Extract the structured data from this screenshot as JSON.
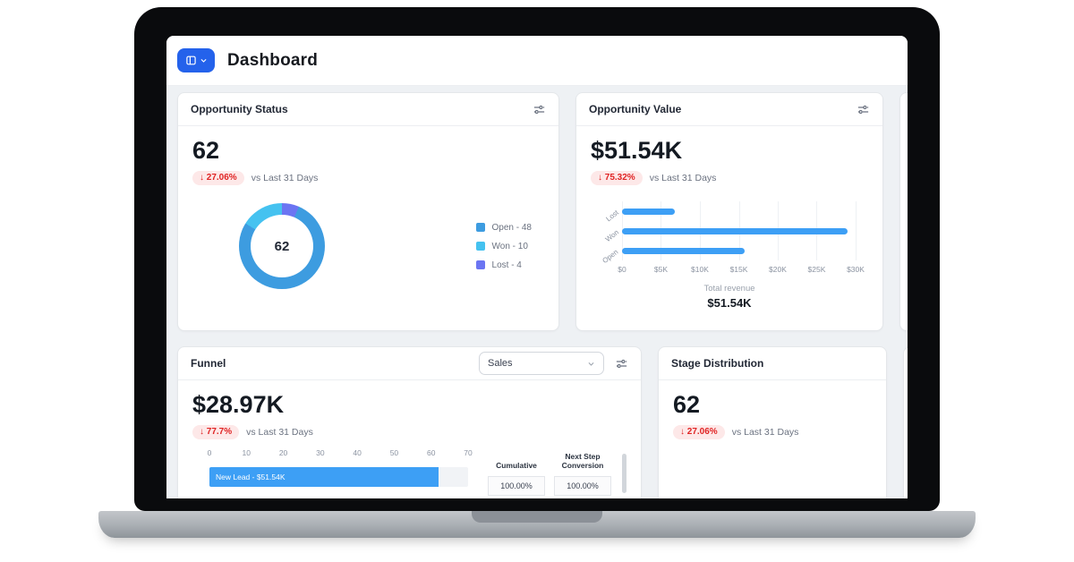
{
  "colors": {
    "accent_blue": "#2462EB",
    "badge_bg": "#FDE8E8",
    "badge_text": "#E02424",
    "bar_blue": "#3D9FF5",
    "canvas_bg": "#EEF1F4"
  },
  "header": {
    "title": "Dashboard"
  },
  "cards": {
    "opportunity_status": {
      "title": "Opportunity Status",
      "value": "62",
      "delta": "↓ 27.06%",
      "period": "vs Last 31 Days",
      "donut_center": "62",
      "segments": [
        {
          "label": "Open - 48",
          "name": "Open",
          "value": 48,
          "color": "#3D9CE0"
        },
        {
          "label": "Won - 10",
          "name": "Won",
          "value": 10,
          "color": "#45C2F0"
        },
        {
          "label": "Lost - 4",
          "name": "Lost",
          "value": 4,
          "color": "#6B75F2"
        }
      ]
    },
    "opportunity_value": {
      "title": "Opportunity Value",
      "value": "$51.54K",
      "delta": "↓ 75.32%",
      "period": "vs Last 31 Days",
      "chart": {
        "type": "bar",
        "categories": [
          "Lost",
          "Won",
          "Open"
        ],
        "values_k": [
          6.8,
          28.97,
          15.8
        ],
        "x_ticks": [
          "$0",
          "$5K",
          "$10K",
          "$15K",
          "$20K",
          "$25K",
          "$30K"
        ],
        "x_max_k": 30
      },
      "footer_label": "Total revenue",
      "footer_value": "$51.54K"
    },
    "funnel": {
      "title": "Funnel",
      "select_value": "Sales",
      "value": "$28.97K",
      "delta": "↓ 77.7%",
      "period": "vs Last 31 Days",
      "axis_ticks": [
        "0",
        "10",
        "20",
        "30",
        "40",
        "50",
        "60",
        "70"
      ],
      "axis_max": 70,
      "columns": [
        "Cumulative",
        "Next Step Conversion"
      ],
      "rows": [
        {
          "label": "New Lead  - $51.54K",
          "value": 62,
          "cumulative": "100.00%",
          "next_step": "100.00%"
        }
      ]
    },
    "stage_distribution": {
      "title": "Stage Distribution",
      "value": "62",
      "delta": "↓ 27.06%",
      "period": "vs Last 31 Days"
    }
  }
}
